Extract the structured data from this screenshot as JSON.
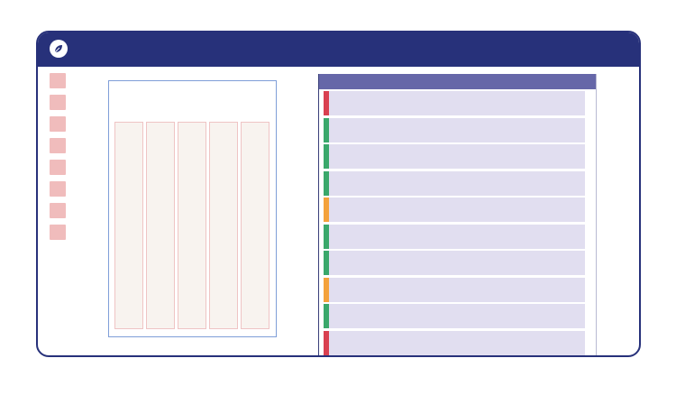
{
  "colors": {
    "titlebar": "#27317a",
    "accent_red": "#d94050",
    "accent_green": "#3aa86b",
    "accent_orange": "#f4a23c"
  },
  "header": {
    "logo_icon": "leaf-icon"
  },
  "sidebar": {
    "items": [
      {
        "icon": "placeholder-square"
      },
      {
        "icon": "placeholder-square"
      },
      {
        "icon": "placeholder-square"
      },
      {
        "icon": "placeholder-square"
      },
      {
        "icon": "placeholder-square"
      },
      {
        "icon": "placeholder-square"
      },
      {
        "icon": "placeholder-square"
      },
      {
        "icon": "placeholder-square"
      }
    ]
  },
  "board": {
    "column_count": 5
  },
  "list": {
    "rows": [
      {
        "status": "red"
      },
      {
        "status": "green"
      },
      {
        "status": "green"
      },
      {
        "status": "green"
      },
      {
        "status": "orange"
      },
      {
        "status": "green"
      },
      {
        "status": "green"
      },
      {
        "status": "orange"
      },
      {
        "status": "green"
      },
      {
        "status": "red"
      }
    ]
  }
}
